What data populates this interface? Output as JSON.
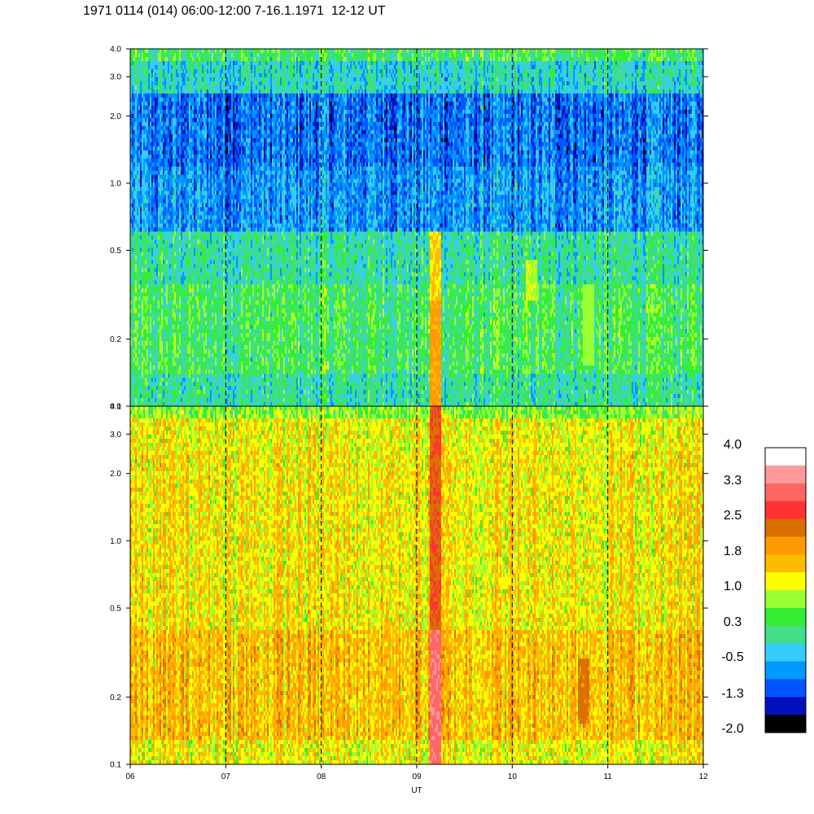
{
  "title": "1971 0114 (014) 06:00-12:00 7-16.1.1971  12-12 UT",
  "chart_data": {
    "type": "heatmap",
    "title": "1971 0114 (014) 06:00-12:00 7-16.1.1971  12-12 UT",
    "xlabel": "UT",
    "x_range": [
      6,
      12
    ],
    "x_ticks": [
      "06",
      "07",
      "08",
      "09",
      "10",
      "11",
      "12"
    ],
    "dashed_lines_at": [
      "07",
      "08",
      "09",
      "10",
      "11"
    ],
    "y_scale": "log",
    "y_range": [
      0.1,
      4.0
    ],
    "y_ticks": [
      "0.1",
      "0.2",
      "0.5",
      "1.0",
      "2.0",
      "3.0",
      "4.0"
    ],
    "panels": [
      {
        "name": "upper",
        "description_level": "mostly 0.3 to -1.3, lower at high frequency",
        "bands": [
          {
            "y_from": 0.1,
            "y_to": 0.14,
            "level": 0.0
          },
          {
            "y_from": 0.14,
            "y_to": 0.35,
            "level": 0.3
          },
          {
            "y_from": 0.35,
            "y_to": 0.6,
            "level": 0.0
          },
          {
            "y_from": 0.6,
            "y_to": 1.2,
            "level": -0.7
          },
          {
            "y_from": 1.2,
            "y_to": 2.5,
            "level": -0.9
          },
          {
            "y_from": 2.5,
            "y_to": 3.5,
            "level": -0.2
          },
          {
            "y_from": 3.5,
            "y_to": 4.0,
            "level": 0.3
          }
        ],
        "features": [
          {
            "x": 9.2,
            "y_from": 0.1,
            "y_to": 0.3,
            "level": 1.8
          },
          {
            "x": 9.2,
            "y_from": 0.3,
            "y_to": 0.6,
            "level": 1.4
          },
          {
            "x": 10.2,
            "y_from": 0.3,
            "y_to": 0.45,
            "level": 1.0
          },
          {
            "x": 10.8,
            "y_from": 0.15,
            "y_to": 0.35,
            "level": 0.9
          }
        ]
      },
      {
        "name": "lower",
        "description_level": "mostly 1.0 to 1.8",
        "bands": [
          {
            "y_from": 0.1,
            "y_to": 0.13,
            "level": 1.2
          },
          {
            "y_from": 0.13,
            "y_to": 0.4,
            "level": 1.6
          },
          {
            "y_from": 0.4,
            "y_to": 2.5,
            "level": 1.3
          },
          {
            "y_from": 2.5,
            "y_to": 3.5,
            "level": 1.2
          },
          {
            "y_from": 3.5,
            "y_to": 4.0,
            "level": 0.7
          }
        ],
        "features": [
          {
            "x": 9.2,
            "y_from": 0.1,
            "y_to": 0.4,
            "level": 3.2
          },
          {
            "x": 9.2,
            "y_from": 0.4,
            "y_to": 4.0,
            "level": 2.5
          },
          {
            "x": 10.75,
            "y_from": 0.15,
            "y_to": 0.3,
            "level": 2.2
          }
        ]
      }
    ],
    "colorbar": {
      "labels": [
        "4.0",
        "3.3",
        "2.5",
        "1.8",
        "1.0",
        "0.3",
        "-0.5",
        "-1.3",
        "-2.0"
      ],
      "colors_top_to_bottom": [
        "#ffffff",
        "#ff9999",
        "#ff6666",
        "#ff3333",
        "#d97000",
        "#ff9900",
        "#ffbb00",
        "#ffff00",
        "#99ff33",
        "#33ee33",
        "#44dd88",
        "#33ccff",
        "#0099ff",
        "#0055ff",
        "#0011bb",
        "#000000"
      ]
    }
  }
}
